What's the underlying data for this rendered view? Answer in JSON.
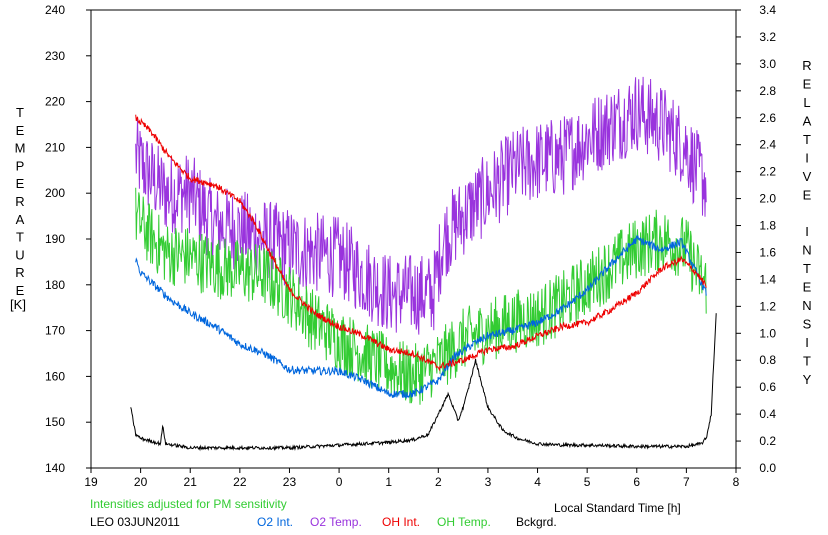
{
  "chart_data": {
    "type": "line",
    "left_axis_label": "TEMPERATURE",
    "left_axis_unit": "[K]",
    "right_axis_label": "RELATIVE INTENSITY",
    "x_axis_label": "Local Standard Time [h]",
    "note": "Intensities adjusted for PM sensitivity",
    "station_date": "LEO 03JUN2011",
    "x_range": [
      19,
      32
    ],
    "x_tick_values": [
      19,
      20,
      21,
      22,
      23,
      24,
      25,
      26,
      27,
      28,
      29,
      30,
      31,
      32
    ],
    "x_tick_labels": [
      "19",
      "20",
      "21",
      "22",
      "23",
      "0",
      "1",
      "2",
      "3",
      "4",
      "5",
      "6",
      "7",
      "8"
    ],
    "left_ylim": [
      140,
      240
    ],
    "left_ticks": [
      "140",
      "150",
      "160",
      "170",
      "180",
      "190",
      "200",
      "210",
      "220",
      "230",
      "240"
    ],
    "right_ylim": [
      0.0,
      3.4
    ],
    "right_ticks": [
      "0.0",
      "0.2",
      "0.4",
      "0.6",
      "0.8",
      "1.0",
      "1.2",
      "1.4",
      "1.6",
      "1.8",
      "2.0",
      "2.2",
      "2.4",
      "2.6",
      "2.8",
      "3.0",
      "3.2",
      "3.4"
    ],
    "grid": false,
    "series": [
      {
        "name": "O2 Int.",
        "axis": "right",
        "color": "#0066dd",
        "noise": 0.03,
        "x": [
          19.9,
          20.0,
          20.3,
          20.6,
          21.0,
          21.5,
          22.0,
          22.5,
          23.0,
          23.5,
          24.0,
          24.5,
          25.0,
          25.5,
          26.0,
          26.3,
          26.7,
          27.0,
          27.5,
          28.0,
          28.5,
          29.0,
          29.5,
          30.0,
          30.5,
          30.9,
          31.2,
          31.4
        ],
        "values": [
          1.55,
          1.45,
          1.35,
          1.25,
          1.15,
          1.05,
          0.92,
          0.85,
          0.73,
          0.72,
          0.72,
          0.65,
          0.55,
          0.55,
          0.65,
          0.82,
          0.92,
          0.98,
          1.02,
          1.08,
          1.18,
          1.32,
          1.52,
          1.7,
          1.62,
          1.68,
          1.45,
          1.3
        ]
      },
      {
        "name": "O2 Temp.",
        "axis": "left",
        "color": "#9933dd",
        "noise": 9,
        "x": [
          19.9,
          20.1,
          20.5,
          21.0,
          21.5,
          22.0,
          22.5,
          23.0,
          23.5,
          24.0,
          24.5,
          25.0,
          25.5,
          25.9,
          26.1,
          26.5,
          27.0,
          27.5,
          28.0,
          28.5,
          29.0,
          29.5,
          30.0,
          30.5,
          31.0,
          31.2,
          31.4
        ],
        "values": [
          208,
          205,
          200,
          200,
          193,
          192,
          190,
          188,
          187,
          186,
          182,
          178,
          178,
          178,
          190,
          195,
          200,
          205,
          207,
          208,
          212,
          215,
          218,
          215,
          210,
          205,
          202
        ]
      },
      {
        "name": "OH Int.",
        "axis": "right",
        "color": "#ee0000",
        "noise": 0.025,
        "x": [
          19.9,
          20.2,
          20.6,
          21.0,
          21.5,
          22.0,
          22.3,
          22.6,
          23.0,
          23.5,
          24.0,
          24.5,
          25.0,
          25.5,
          26.0,
          26.5,
          27.0,
          27.5,
          28.0,
          28.5,
          29.0,
          29.5,
          30.0,
          30.5,
          30.9,
          31.2,
          31.4
        ],
        "values": [
          2.6,
          2.5,
          2.3,
          2.15,
          2.1,
          1.98,
          1.82,
          1.6,
          1.32,
          1.15,
          1.05,
          0.98,
          0.88,
          0.85,
          0.75,
          0.8,
          0.88,
          0.9,
          0.98,
          1.05,
          1.08,
          1.18,
          1.3,
          1.48,
          1.55,
          1.45,
          1.35
        ]
      },
      {
        "name": "OH Temp.",
        "axis": "left",
        "color": "#33cc33",
        "noise": 7,
        "x": [
          19.9,
          20.1,
          20.5,
          21.0,
          21.5,
          22.0,
          22.5,
          23.0,
          23.5,
          24.0,
          24.5,
          25.0,
          25.5,
          26.0,
          26.5,
          27.0,
          27.5,
          28.0,
          28.5,
          29.0,
          29.5,
          30.0,
          30.5,
          31.0,
          31.2,
          31.4
        ],
        "values": [
          195,
          192,
          187,
          186,
          184,
          183,
          182,
          178,
          172,
          168,
          165,
          162,
          160,
          163,
          168,
          170,
          172,
          173,
          176,
          180,
          184,
          188,
          190,
          188,
          183,
          180
        ]
      },
      {
        "name": "Bckgrd.",
        "axis": "right",
        "color": "#000000",
        "noise": 0.012,
        "x": [
          19.8,
          19.9,
          20.0,
          20.4,
          20.45,
          20.5,
          21.0,
          22.0,
          23.0,
          24.0,
          24.5,
          25.0,
          25.5,
          25.8,
          26.0,
          26.2,
          26.4,
          26.5,
          26.6,
          26.75,
          27.0,
          27.3,
          27.6,
          28.0,
          28.5,
          29.0,
          30.0,
          30.5,
          31.0,
          31.3,
          31.4,
          31.5,
          31.6
        ],
        "values": [
          0.45,
          0.25,
          0.22,
          0.18,
          0.32,
          0.18,
          0.15,
          0.15,
          0.15,
          0.17,
          0.18,
          0.19,
          0.21,
          0.25,
          0.4,
          0.55,
          0.35,
          0.45,
          0.58,
          0.8,
          0.45,
          0.28,
          0.22,
          0.18,
          0.17,
          0.17,
          0.16,
          0.16,
          0.16,
          0.18,
          0.22,
          0.4,
          1.15
        ]
      }
    ]
  }
}
